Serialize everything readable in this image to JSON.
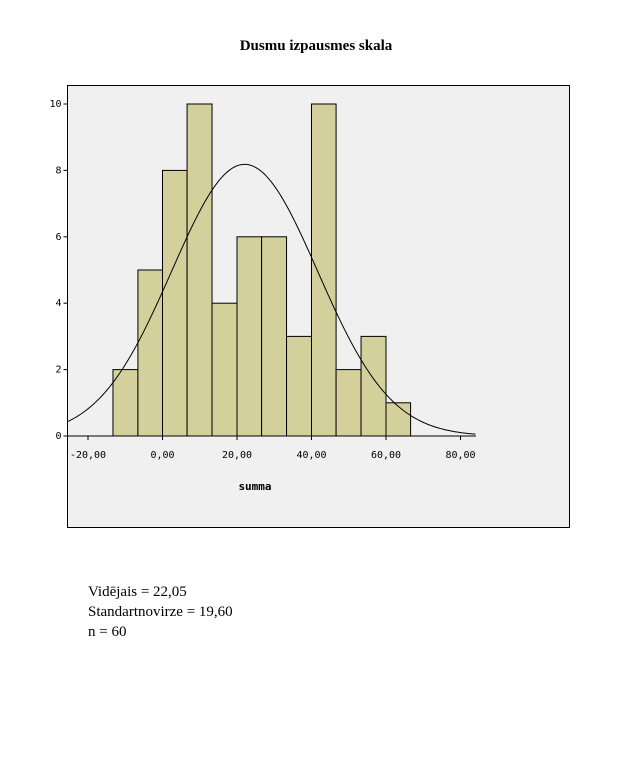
{
  "chart_data": {
    "type": "histogram",
    "title": "Dusmu izpausmes skala",
    "xlabel": "summa",
    "ylabel": "",
    "xlim": [
      -26,
      86
    ],
    "ylim": [
      0,
      10.6
    ],
    "x_ticks": [
      -20,
      0,
      20,
      40,
      60,
      80
    ],
    "x_tick_labels": [
      "-20,00",
      "0,00",
      "20,00",
      "40,00",
      "60,00",
      "80,00"
    ],
    "y_ticks": [
      0,
      2,
      4,
      6,
      8,
      10
    ],
    "y_tick_labels": [
      "0",
      "2",
      "4",
      "6",
      "8",
      "10"
    ],
    "bin_edges": [
      -13.3,
      -6.6,
      0,
      6.6,
      13.3,
      20,
      26.6,
      33.3,
      40,
      46.6,
      53.3,
      60,
      66.6
    ],
    "counts": [
      2,
      5,
      8,
      10,
      4,
      6,
      6,
      3,
      10,
      2,
      3,
      1
    ],
    "normal_curve": {
      "mean": 22.05,
      "std": 19.6,
      "n": 60
    },
    "bar_color": "#d4d09c",
    "plot_background": "#f0f0f0",
    "grid": false
  },
  "stats": {
    "mean_line": "Vidējais = 22,05",
    "std_line": "Standartnovirze = 19,60",
    "n_line": "n = 60"
  }
}
